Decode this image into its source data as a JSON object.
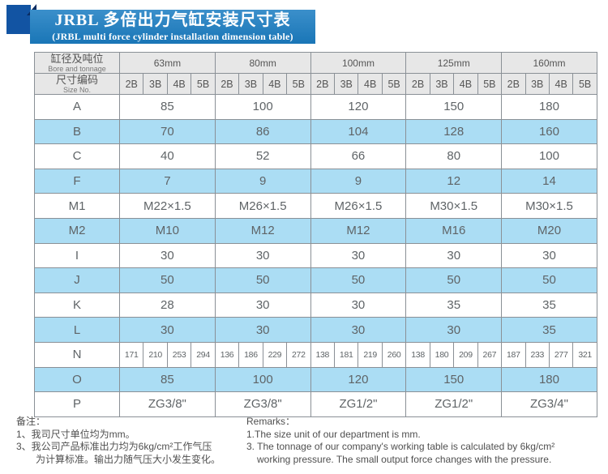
{
  "banner": {
    "title": "JRBL 多倍出力气缸安装尺寸表",
    "subtitle": "(JRBL multi force cylinder installation dimension table)",
    "banner_color": "#1b7dc2",
    "ribbon_color": "#1254a3",
    "fold_color": "#0a2c62"
  },
  "table": {
    "corner": {
      "row1_zh": "缸径及吨位",
      "row1_en": "Bore and tonnage",
      "row2_zh": "尺寸编码",
      "row2_en": "Size No."
    },
    "groups": [
      "63mm",
      "80mm",
      "100mm",
      "125mm",
      "160mm"
    ],
    "sub_columns": [
      "2B",
      "3B",
      "4B",
      "5B"
    ],
    "stripe_color": "#abddf4",
    "rows": [
      {
        "label": "A",
        "merged": true,
        "striped": false,
        "values": [
          "85",
          "100",
          "120",
          "150",
          "180"
        ]
      },
      {
        "label": "B",
        "merged": true,
        "striped": true,
        "values": [
          "70",
          "86",
          "104",
          "128",
          "160"
        ]
      },
      {
        "label": "C",
        "merged": true,
        "striped": false,
        "values": [
          "40",
          "52",
          "66",
          "80",
          "100"
        ]
      },
      {
        "label": "F",
        "merged": true,
        "striped": true,
        "values": [
          "7",
          "9",
          "9",
          "12",
          "14"
        ]
      },
      {
        "label": "M1",
        "merged": true,
        "striped": false,
        "values": [
          "M22×1.5",
          "M26×1.5",
          "M26×1.5",
          "M30×1.5",
          "M30×1.5"
        ]
      },
      {
        "label": "M2",
        "merged": true,
        "striped": true,
        "values": [
          "M10",
          "M12",
          "M12",
          "M16",
          "M20"
        ]
      },
      {
        "label": "I",
        "merged": true,
        "striped": false,
        "values": [
          "30",
          "30",
          "30",
          "30",
          "30"
        ]
      },
      {
        "label": "J",
        "merged": true,
        "striped": true,
        "values": [
          "50",
          "50",
          "50",
          "50",
          "50"
        ]
      },
      {
        "label": "K",
        "merged": true,
        "striped": false,
        "values": [
          "28",
          "30",
          "30",
          "35",
          "35"
        ]
      },
      {
        "label": "L",
        "merged": true,
        "striped": true,
        "values": [
          "30",
          "30",
          "30",
          "30",
          "35"
        ]
      },
      {
        "label": "N",
        "merged": false,
        "striped": false,
        "values": [
          "171",
          "210",
          "253",
          "294",
          "136",
          "186",
          "229",
          "272",
          "138",
          "181",
          "219",
          "260",
          "138",
          "180",
          "209",
          "267",
          "187",
          "233",
          "277",
          "321"
        ]
      },
      {
        "label": "O",
        "merged": true,
        "striped": true,
        "values": [
          "85",
          "100",
          "120",
          "150",
          "180"
        ]
      },
      {
        "label": "P",
        "merged": true,
        "striped": false,
        "values": [
          "ZG3/8\"",
          "ZG3/8\"",
          "ZG1/2\"",
          "ZG1/2\"",
          "ZG3/4\""
        ]
      }
    ]
  },
  "notes_left": {
    "title": "备注：",
    "line1": "1、我司尺寸单位均为mm。",
    "line2": "3、我公司产品标准出力均为6kg/cm²工作气压",
    "line3": "为计算标准。输出力随气压大小发生变化。"
  },
  "notes_right": {
    "title": "Remarks：",
    "line1": "1.The size unit of our department is mm.",
    "line2": "3. The tonnage of our company's working table is calculated by 6kg/cm²",
    "line3": "working pressure. The small output force changes with the pressure."
  }
}
